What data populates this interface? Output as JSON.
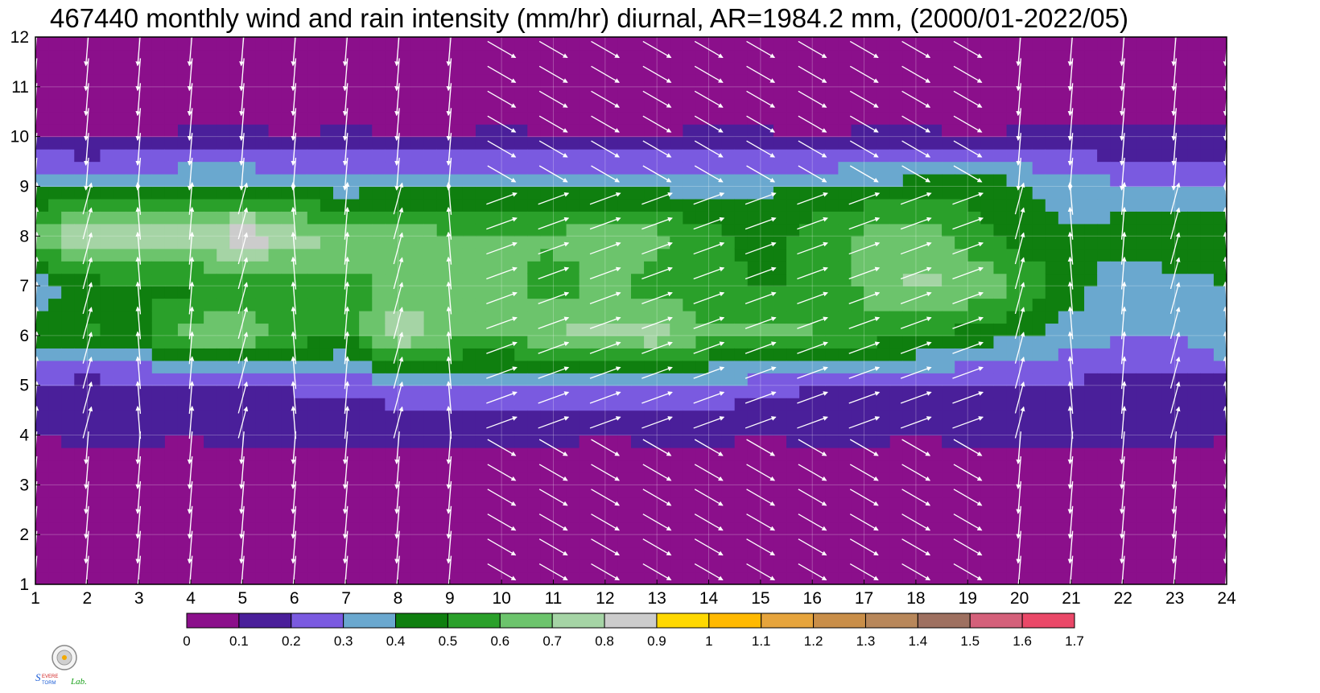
{
  "title": "467440 monthly wind and rain intensity (mm/hr) diurnal, AR=1984.2 mm, (2000/01-2022/05)",
  "chart_data": {
    "type": "heatmap",
    "title": "467440 monthly wind and rain intensity (mm/hr) diurnal, AR=1984.2 mm, (2000/01-2022/05)",
    "xlabel": "",
    "ylabel": "",
    "xlim": [
      1,
      24
    ],
    "ylim": [
      1,
      12
    ],
    "x_ticks": [
      "1",
      "2",
      "3",
      "4",
      "5",
      "6",
      "7",
      "8",
      "9",
      "10",
      "11",
      "12",
      "13",
      "14",
      "15",
      "16",
      "17",
      "18",
      "19",
      "20",
      "21",
      "22",
      "23",
      "24"
    ],
    "y_ticks": [
      "1",
      "2",
      "3",
      "4",
      "5",
      "6",
      "7",
      "8",
      "9",
      "10",
      "11",
      "12"
    ],
    "grid": true,
    "overlay": "wind vectors (white arrows) at every hour / month grid point",
    "colorbar": {
      "levels": [
        0,
        0.1,
        0.2,
        0.3,
        0.4,
        0.5,
        0.6,
        0.7,
        0.8,
        0.9,
        1,
        1.1,
        1.2,
        1.3,
        1.4,
        1.5,
        1.6,
        1.7
      ],
      "labels": [
        "0",
        "0.1",
        "0.2",
        "0.3",
        "0.4",
        "0.5",
        "0.6",
        "0.7",
        "0.8",
        "0.9",
        "1",
        "1.1",
        "1.2",
        "1.3",
        "1.4",
        "1.5",
        "1.6",
        "1.7"
      ],
      "colors": [
        "#8b0f8b",
        "#4a1f9a",
        "#7a5ae0",
        "#6aa8cf",
        "#0f7f0f",
        "#2aa02a",
        "#6cc46c",
        "#a5d4a5",
        "#cccccc",
        "#ffd800",
        "#ffb900",
        "#e6a43c",
        "#c98e48",
        "#b8875a",
        "#9e7060",
        "#d4607a",
        "#ea4868",
        "#d82844"
      ]
    },
    "month_profiles": [
      {
        "month": 1,
        "values": [
          0.0,
          0.0,
          0.0,
          0.0,
          0.0,
          0.0,
          0.0,
          0.0,
          0.0,
          0.0,
          0.0,
          0.0,
          0.0,
          0.0,
          0.0,
          0.0,
          0.0,
          0.0,
          0.0,
          0.0,
          0.0,
          0.0,
          0.0,
          0.0
        ]
      },
      {
        "month": 2,
        "values": [
          0.03,
          0.03,
          0.03,
          0.03,
          0.03,
          0.03,
          0.03,
          0.03,
          0.03,
          0.03,
          0.03,
          0.03,
          0.03,
          0.03,
          0.03,
          0.03,
          0.03,
          0.03,
          0.03,
          0.03,
          0.03,
          0.03,
          0.03,
          0.03
        ]
      },
      {
        "month": 3,
        "values": [
          0.06,
          0.06,
          0.06,
          0.06,
          0.06,
          0.06,
          0.06,
          0.06,
          0.06,
          0.06,
          0.06,
          0.06,
          0.06,
          0.06,
          0.06,
          0.06,
          0.06,
          0.06,
          0.06,
          0.06,
          0.06,
          0.06,
          0.06,
          0.06
        ]
      },
      {
        "month": 4,
        "values": [
          0.1,
          0.11,
          0.11,
          0.1,
          0.12,
          0.12,
          0.11,
          0.11,
          0.11,
          0.11,
          0.11,
          0.1,
          0.11,
          0.11,
          0.1,
          0.11,
          0.11,
          0.1,
          0.11,
          0.11,
          0.11,
          0.12,
          0.12,
          0.1
        ]
      },
      {
        "month": 5,
        "values": [
          0.18,
          0.15,
          0.17,
          0.22,
          0.15,
          0.22,
          0.22,
          0.26,
          0.27,
          0.28,
          0.28,
          0.28,
          0.27,
          0.27,
          0.25,
          0.2,
          0.2,
          0.2,
          0.2,
          0.2,
          0.19,
          0.16,
          0.16,
          0.16
        ]
      },
      {
        "month": 6,
        "values": [
          0.43,
          0.52,
          0.48,
          0.66,
          0.7,
          0.55,
          0.5,
          0.8,
          0.65,
          0.6,
          0.72,
          0.72,
          0.78,
          0.62,
          0.62,
          0.62,
          0.55,
          0.52,
          0.45,
          0.4,
          0.35,
          0.3,
          0.3,
          0.4
        ]
      },
      {
        "month": 7,
        "values": [
          0.33,
          0.45,
          0.47,
          0.48,
          0.5,
          0.52,
          0.58,
          0.6,
          0.68,
          0.65,
          0.55,
          0.62,
          0.55,
          0.52,
          0.5,
          0.5,
          0.62,
          0.72,
          0.7,
          0.6,
          0.45,
          0.32,
          0.35,
          0.4
        ]
      },
      {
        "month": 8,
        "values": [
          0.65,
          0.82,
          0.8,
          0.75,
          0.9,
          0.75,
          0.7,
          0.66,
          0.62,
          0.6,
          0.62,
          0.66,
          0.64,
          0.55,
          0.45,
          0.55,
          0.62,
          0.68,
          0.55,
          0.45,
          0.42,
          0.45,
          0.5,
          0.5
        ]
      },
      {
        "month": 9,
        "values": [
          0.38,
          0.36,
          0.38,
          0.42,
          0.42,
          0.38,
          0.35,
          0.38,
          0.38,
          0.38,
          0.38,
          0.38,
          0.37,
          0.35,
          0.38,
          0.4,
          0.42,
          0.45,
          0.48,
          0.42,
          0.35,
          0.32,
          0.3,
          0.28
        ]
      },
      {
        "month": 10,
        "values": [
          0.1,
          0.1,
          0.1,
          0.12,
          0.12,
          0.11,
          0.12,
          0.11,
          0.11,
          0.12,
          0.11,
          0.11,
          0.11,
          0.12,
          0.12,
          0.1,
          0.12,
          0.13,
          0.1,
          0.12,
          0.12,
          0.12,
          0.12,
          0.12
        ]
      },
      {
        "month": 11,
        "values": [
          0.0,
          0.0,
          0.0,
          0.0,
          0.0,
          0.0,
          0.0,
          0.0,
          0.0,
          0.0,
          0.0,
          0.0,
          0.0,
          0.0,
          0.0,
          0.0,
          0.0,
          0.0,
          0.0,
          0.0,
          0.0,
          0.0,
          0.0,
          0.0
        ]
      },
      {
        "month": 12,
        "values": [
          0.0,
          0.0,
          0.0,
          0.0,
          0.0,
          0.0,
          0.0,
          0.0,
          0.0,
          0.0,
          0.0,
          0.0,
          0.0,
          0.0,
          0.0,
          0.0,
          0.0,
          0.0,
          0.0,
          0.0,
          0.0,
          0.0,
          0.0,
          0.0
        ]
      }
    ]
  },
  "logo": {
    "text_lab": "Lab."
  }
}
